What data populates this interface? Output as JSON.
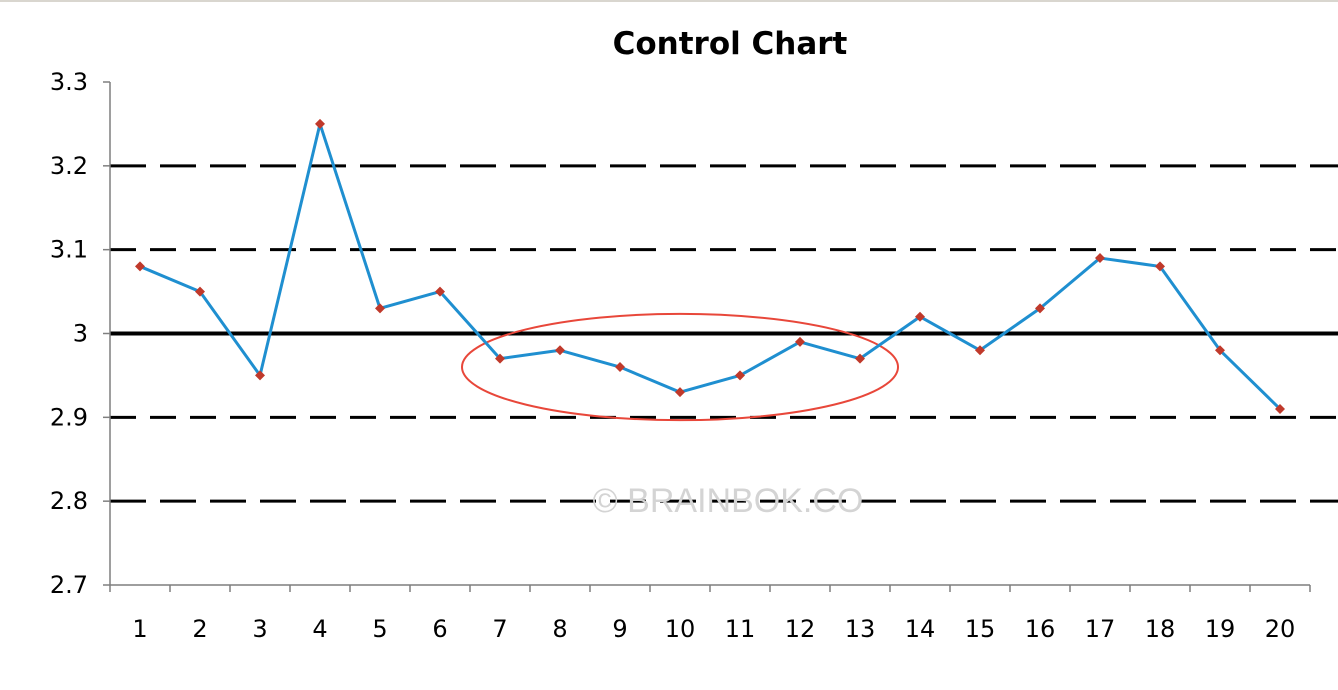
{
  "chart_data": {
    "type": "line",
    "title": "Control Chart",
    "xlabel": "",
    "ylabel": "",
    "categories": [
      "1",
      "2",
      "3",
      "4",
      "5",
      "6",
      "7",
      "8",
      "9",
      "10",
      "11",
      "12",
      "13",
      "14",
      "15",
      "16",
      "17",
      "18",
      "19",
      "20"
    ],
    "series": [
      {
        "values": [
          3.08,
          3.05,
          2.95,
          3.25,
          3.03,
          3.05,
          2.97,
          2.98,
          2.96,
          2.93,
          2.95,
          2.99,
          2.97,
          3.02,
          2.98,
          3.03,
          3.09,
          3.08,
          2.98,
          2.91
        ]
      }
    ],
    "ylim": [
      2.7,
      3.3
    ],
    "yticks": [
      "2.7",
      "2.8",
      "2.9",
      "3",
      "3.1",
      "3.2",
      "3.3"
    ],
    "reference_lines": [
      {
        "value": 3.0,
        "style": "solid"
      },
      {
        "value": 3.1,
        "style": "dashed"
      },
      {
        "value": 2.9,
        "style": "dashed"
      },
      {
        "value": 3.2,
        "style": "dashed"
      },
      {
        "value": 2.8,
        "style": "dashed"
      }
    ],
    "highlight": {
      "from_category": "7",
      "to_category": "13",
      "shape": "ellipse",
      "color": "#e8473a"
    },
    "grid": false,
    "colors": {
      "line": "#1f8fd0",
      "marker": "#c0392b",
      "axis": "#7f7f7f",
      "reference": "#000000"
    },
    "watermark": "© BRAINBOK.CO"
  }
}
